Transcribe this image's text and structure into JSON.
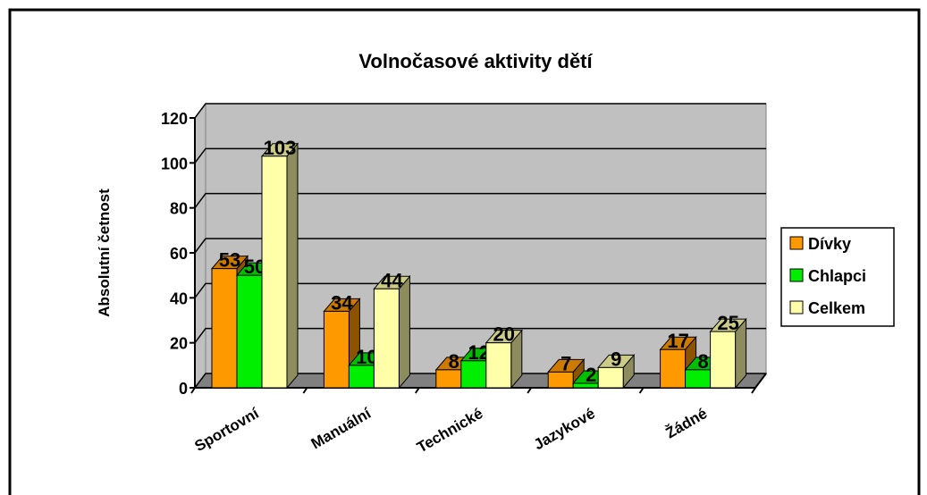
{
  "chart_data": {
    "type": "bar3d",
    "title": "Volnočasové aktivity dětí",
    "y_label": "Absolutní četnost",
    "categories": [
      "Sportovní",
      "Manuální",
      "Technické",
      "Jazykové",
      "Žádné"
    ],
    "series": [
      {
        "name": "Dívky",
        "color": "#ff9900",
        "values": [
          53,
          34,
          8,
          7,
          17
        ]
      },
      {
        "name": "Chlapci",
        "color": "#00ee00",
        "values": [
          50,
          10,
          12,
          2,
          8
        ]
      },
      {
        "name": "Celkem",
        "color": "#ffffaa",
        "values": [
          103,
          44,
          20,
          9,
          25
        ]
      }
    ],
    "ylim": [
      0,
      120
    ],
    "yticks": [
      0,
      20,
      40,
      60,
      80,
      100,
      120
    ],
    "grid": true,
    "legend": "right"
  }
}
